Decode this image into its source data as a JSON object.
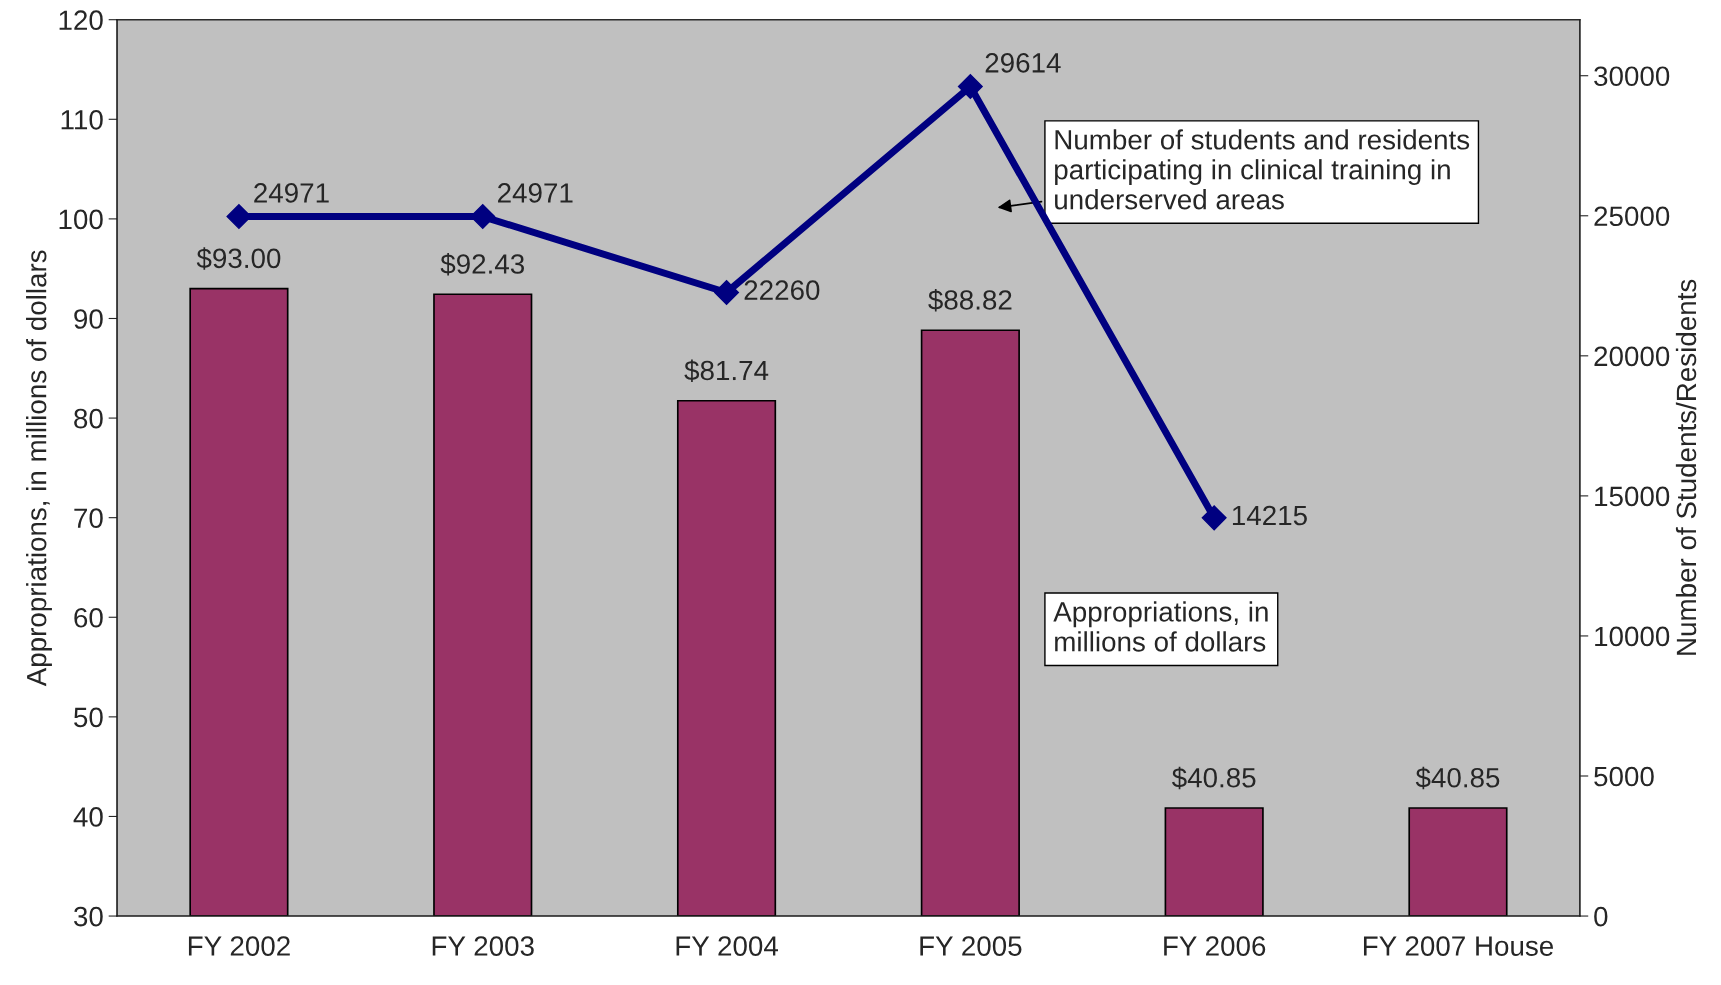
{
  "chart_data": {
    "type": "bar",
    "xlabel": null,
    "ylabel": "Appropriations, in millions of dollars",
    "y2label": "Number of Students/Residents",
    "categories": [
      "FY 2002",
      "FY 2003",
      "FY 2004",
      "FY 2005",
      "FY 2006",
      "FY 2007 House"
    ],
    "series": [
      {
        "color": "#993366",
        "values": [
          93.0,
          92.43,
          81.74,
          88.82,
          40.85,
          40.85
        ],
        "value_labels": [
          "$93.00",
          "$92.43",
          "$81.74",
          "$88.82",
          "$40.85",
          "$40.85"
        ]
      },
      {
        "type": "line",
        "axis": "y2",
        "color": "#000080",
        "marker": "diamond",
        "values": [
          24971,
          24971,
          22260,
          29614,
          14215,
          null
        ],
        "value_labels": [
          "24971",
          "24971",
          "22260",
          "29614",
          "14215",
          null
        ]
      }
    ],
    "ylim": [
      30,
      120
    ],
    "yticks": [
      30,
      40,
      50,
      60,
      70,
      80,
      90,
      100,
      110,
      120
    ],
    "y2lim": [
      0,
      32000
    ],
    "y2ticks": [
      0,
      5000,
      10000,
      15000,
      20000,
      25000,
      30000
    ],
    "grid": false,
    "legend": false,
    "annotations": [
      "Number of students and residents\nparticipating in clinical training in\nunderserved areas",
      "Appropriations, in\nmillions of dollars"
    ]
  }
}
